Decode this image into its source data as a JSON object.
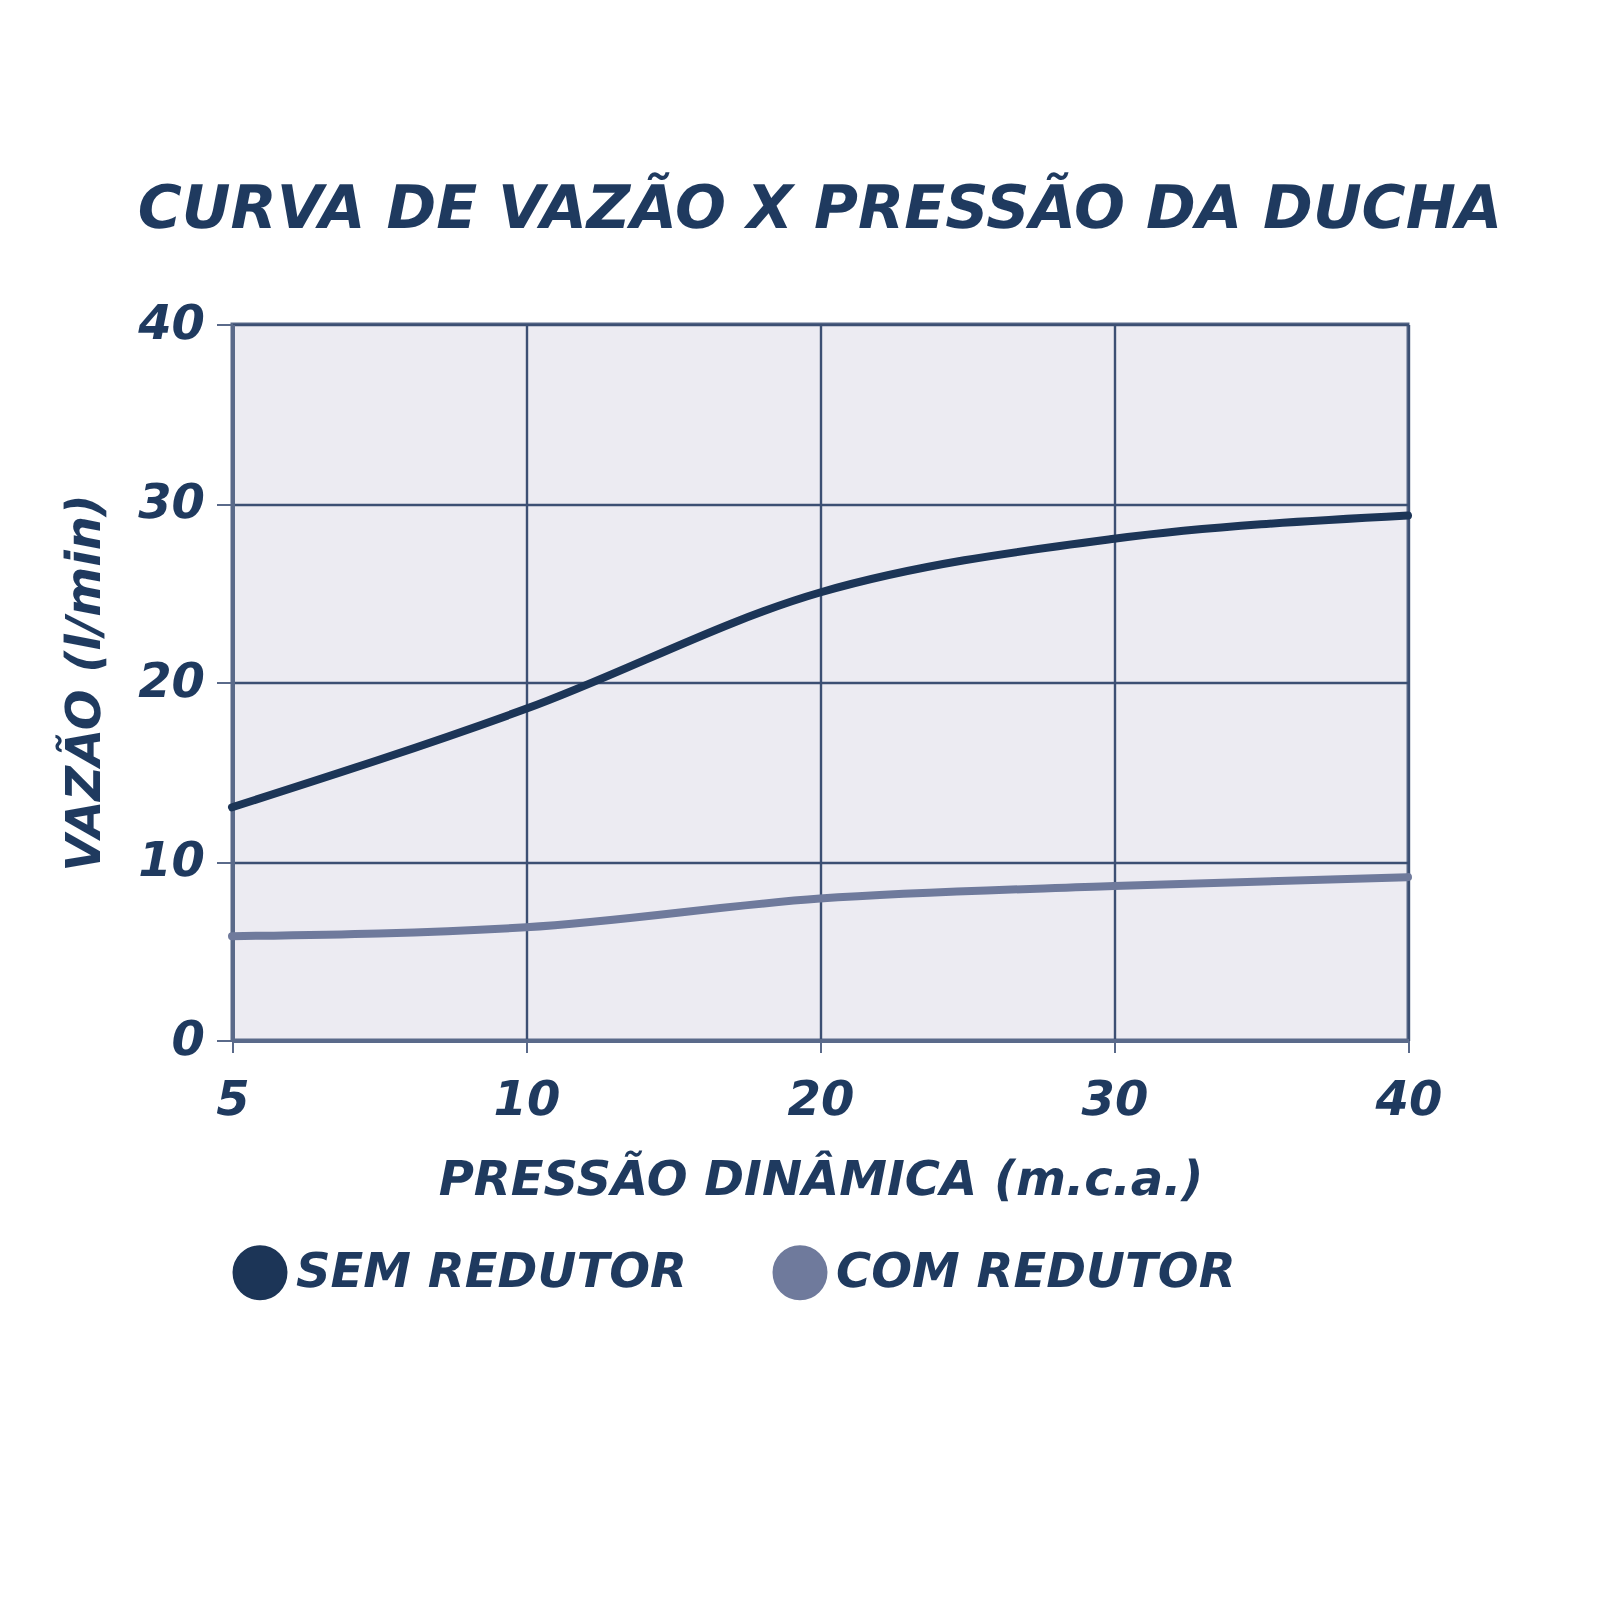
{
  "chart_data": {
    "type": "line",
    "title": "CURVA DE VAZÃO X PRESSÃO DA DUCHA",
    "xlabel": "PRESSÃO DINÂMICA (m.c.a.)",
    "ylabel": "VAZÃO (l/min)",
    "categories": [
      "5",
      "10",
      "20",
      "30",
      "40"
    ],
    "series": [
      {
        "name": "SEM REDUTOR",
        "color": "#1c3557",
        "values": [
          13,
          18.5,
          25,
          28,
          29.3
        ]
      },
      {
        "name": "COM REDUTOR",
        "color": "#6f7a9c",
        "values": [
          5.8,
          6.3,
          7.9,
          8.6,
          9.1
        ]
      }
    ],
    "ylim": [
      0,
      40
    ],
    "yticks": [
      0,
      10,
      20,
      30,
      40
    ],
    "grid": true,
    "legend": "bottom",
    "marker": "none",
    "line_style": "solid"
  }
}
